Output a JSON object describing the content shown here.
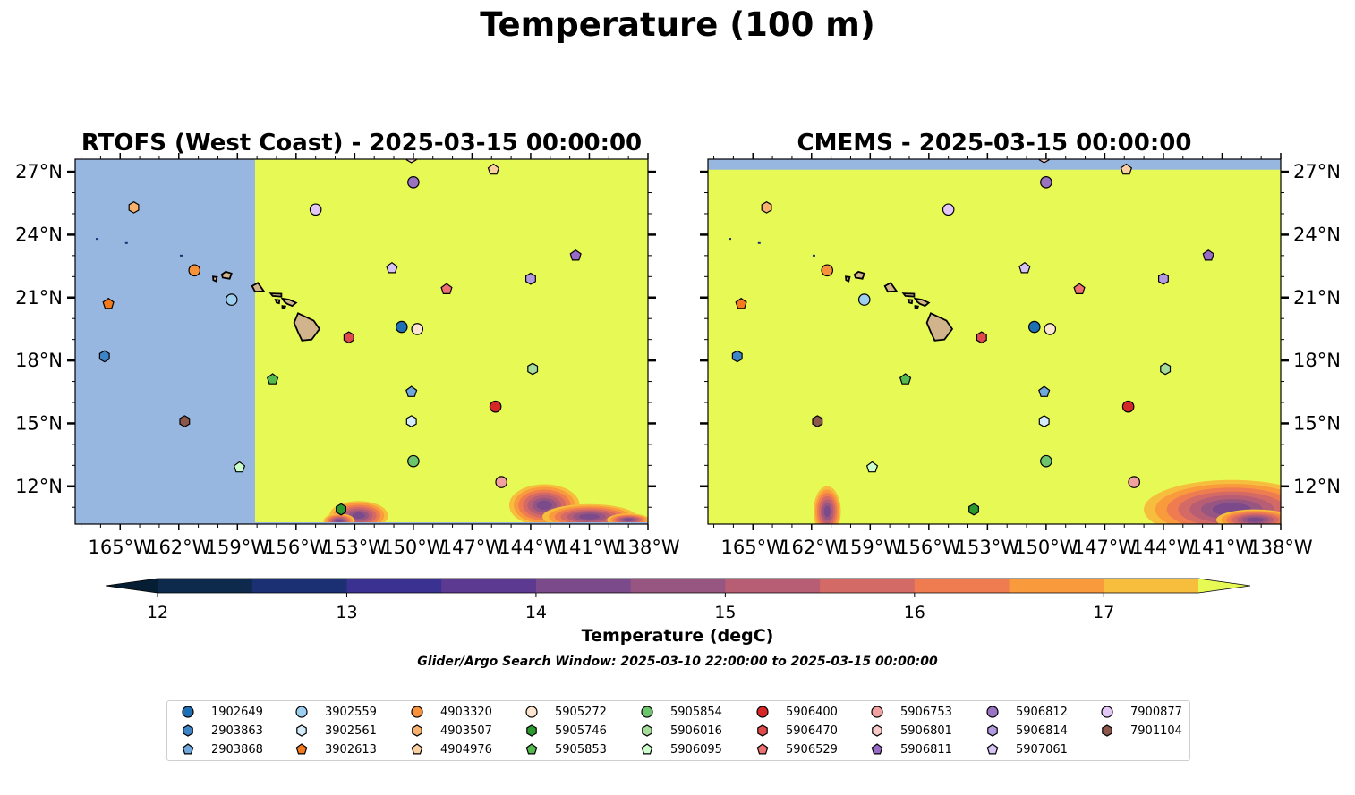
{
  "figure": {
    "title": "Temperature (100 m)",
    "colorbar_label": "Temperature (degC)",
    "search_window": "Glider/Argo Search Window: 2025-03-10 22:00:00 to 2025-03-15 00:00:00"
  },
  "chart_data": [
    {
      "type": "heatmap",
      "title": "RTOFS (West Coast) - 2025-03-15 00:00:00",
      "x_ticks": [
        "165°W",
        "162°W",
        "159°W",
        "156°W",
        "153°W",
        "150°W",
        "147°W",
        "144°W",
        "141°W",
        "138°W"
      ],
      "y_ticks": [
        "12°N",
        "15°N",
        "18°N",
        "21°N",
        "24°N",
        "27°N"
      ],
      "xlim": [
        -167.3,
        -138
      ],
      "ylim": [
        10.2,
        27.6
      ],
      "tick_side": "left",
      "no_data_lon_max": -158.1,
      "field_value": "> 17.5"
    },
    {
      "type": "heatmap",
      "title": "CMEMS - 2025-03-15 00:00:00",
      "x_ticks": [
        "165°W",
        "162°W",
        "159°W",
        "156°W",
        "153°W",
        "150°W",
        "147°W",
        "144°W",
        "141°W",
        "138°W"
      ],
      "y_ticks": [
        "12°N",
        "15°N",
        "18°N",
        "21°N",
        "24°N",
        "27°N"
      ],
      "xlim": [
        -167.3,
        -138
      ],
      "ylim": [
        10.2,
        27.6
      ],
      "tick_side": "right",
      "no_data_lat_min": 27.1,
      "field_value": "> 17.5"
    }
  ],
  "colorbar": {
    "min": 11.75,
    "max": 17.5,
    "ticks": [
      "12",
      "13",
      "14",
      "15",
      "16",
      "17"
    ],
    "tick_values": [
      12,
      13,
      14,
      15,
      16,
      17
    ],
    "bounds": [
      11.75,
      12,
      12.5,
      13,
      13.5,
      14,
      14.5,
      15,
      15.5,
      16,
      16.5,
      17,
      17.5
    ],
    "colors": [
      "#051e33",
      "#0d2a4d",
      "#1b2f73",
      "#3a3190",
      "#5c3a92",
      "#7a4a8a",
      "#975681",
      "#b75e75",
      "#d46a66",
      "#ee7c50",
      "#f99a3c",
      "#f7bd3d",
      "#f0d54a"
    ],
    "over_color": "#e6f955",
    "under_color": "#051e33",
    "no_data_color": "#97b6e0",
    "land_color": "#d2b48c"
  },
  "floats": [
    {
      "id": "1902649",
      "lon": -150.6,
      "lat": 19.6,
      "marker": "circle",
      "color": "#1f6fb4"
    },
    {
      "id": "2903863",
      "lon": -165.8,
      "lat": 18.2,
      "marker": "hexagon",
      "color": "#3d85c6"
    },
    {
      "id": "2903868",
      "lon": -150.1,
      "lat": 16.5,
      "marker": "pentagon",
      "color": "#6fa8dc"
    },
    {
      "id": "3902559",
      "lon": -159.3,
      "lat": 20.9,
      "marker": "circle",
      "color": "#9fcfee"
    },
    {
      "id": "3902561",
      "lon": -150.1,
      "lat": 15.1,
      "marker": "hexagon",
      "color": "#d4ecfa"
    },
    {
      "id": "3902613",
      "lon": -165.6,
      "lat": 20.7,
      "marker": "pentagon",
      "color": "#f37b1d"
    },
    {
      "id": "4903320",
      "lon": -161.2,
      "lat": 22.3,
      "marker": "circle",
      "color": "#f7923a"
    },
    {
      "id": "4903507",
      "lon": -164.3,
      "lat": 25.3,
      "marker": "hexagon",
      "color": "#f9b26e"
    },
    {
      "id": "4904976",
      "lon": -145.9,
      "lat": 27.1,
      "marker": "pentagon",
      "color": "#fcd0a1"
    },
    {
      "id": "5905272",
      "lon": -149.8,
      "lat": 19.5,
      "marker": "circle",
      "color": "#fde6cf"
    },
    {
      "id": "5905746",
      "lon": -153.7,
      "lat": 10.9,
      "marker": "hexagon",
      "color": "#2c9a2c"
    },
    {
      "id": "5905853",
      "lon": -157.2,
      "lat": 17.1,
      "marker": "pentagon",
      "color": "#55bb4e"
    },
    {
      "id": "5905854",
      "lon": -150.0,
      "lat": 13.2,
      "marker": "circle",
      "color": "#6cc46c"
    },
    {
      "id": "5906016",
      "lon": -143.9,
      "lat": 17.6,
      "marker": "hexagon",
      "color": "#a6dc9a"
    },
    {
      "id": "5906095",
      "lon": -158.9,
      "lat": 12.9,
      "marker": "pentagon",
      "color": "#ccffcc"
    },
    {
      "id": "5906400",
      "lon": -145.8,
      "lat": 15.8,
      "marker": "circle",
      "color": "#d62728"
    },
    {
      "id": "5906470",
      "lon": -153.3,
      "lat": 19.1,
      "marker": "hexagon",
      "color": "#e04a4a"
    },
    {
      "id": "5906529",
      "lon": -148.3,
      "lat": 21.4,
      "marker": "pentagon",
      "color": "#ef7070"
    },
    {
      "id": "5906753",
      "lon": -145.5,
      "lat": 12.2,
      "marker": "circle",
      "color": "#f2a0a0"
    },
    {
      "id": "5906801",
      "lon": -150.1,
      "lat": 27.7,
      "marker": "hexagon",
      "color": "#f9c9c9"
    },
    {
      "id": "5906811",
      "lon": -141.7,
      "lat": 23.0,
      "marker": "pentagon",
      "color": "#9a6bc6"
    },
    {
      "id": "5906812",
      "lon": -150.0,
      "lat": 26.5,
      "marker": "circle",
      "color": "#9a72c2"
    },
    {
      "id": "5906814",
      "lon": -144.0,
      "lat": 21.9,
      "marker": "hexagon",
      "color": "#b39ae0"
    },
    {
      "id": "5907061",
      "lon": -151.1,
      "lat": 22.4,
      "marker": "pentagon",
      "color": "#d7c4f5"
    },
    {
      "id": "7900877",
      "lon": -155.0,
      "lat": 25.2,
      "marker": "circle",
      "color": "#e3c8f7"
    },
    {
      "id": "7901104",
      "lon": -161.7,
      "lat": 15.1,
      "marker": "hexagon",
      "color": "#8c564b"
    }
  ],
  "islands": [
    {
      "name": "Hawaii",
      "pts": [
        [
          -155.9,
          20.25
        ],
        [
          -155.1,
          19.9
        ],
        [
          -154.8,
          19.5
        ],
        [
          -155.2,
          19.0
        ],
        [
          -155.7,
          18.95
        ],
        [
          -155.9,
          19.35
        ],
        [
          -156.1,
          19.8
        ]
      ]
    },
    {
      "name": "Maui",
      "pts": [
        [
          -156.7,
          20.95
        ],
        [
          -156.35,
          20.9
        ],
        [
          -156.0,
          20.75
        ],
        [
          -156.2,
          20.6
        ],
        [
          -156.45,
          20.7
        ],
        [
          -156.6,
          20.8
        ]
      ]
    },
    {
      "name": "Molokai",
      "pts": [
        [
          -157.3,
          21.2
        ],
        [
          -156.75,
          21.18
        ],
        [
          -156.75,
          21.05
        ],
        [
          -157.2,
          21.08
        ]
      ]
    },
    {
      "name": "Lanai",
      "pts": [
        [
          -157.05,
          20.9
        ],
        [
          -156.85,
          20.88
        ],
        [
          -156.87,
          20.73
        ],
        [
          -157.0,
          20.76
        ]
      ]
    },
    {
      "name": "Oahu",
      "pts": [
        [
          -158.25,
          21.55
        ],
        [
          -157.95,
          21.7
        ],
        [
          -157.65,
          21.3
        ],
        [
          -158.1,
          21.28
        ]
      ]
    },
    {
      "name": "Kauai",
      "pts": [
        [
          -159.8,
          22.1
        ],
        [
          -159.6,
          22.23
        ],
        [
          -159.3,
          22.15
        ],
        [
          -159.4,
          21.9
        ],
        [
          -159.75,
          21.95
        ]
      ]
    },
    {
      "name": "Niihau",
      "pts": [
        [
          -160.25,
          22.0
        ],
        [
          -160.05,
          21.98
        ],
        [
          -160.1,
          21.78
        ],
        [
          -160.23,
          21.83
        ]
      ]
    },
    {
      "name": "Kahoolawe",
      "pts": [
        [
          -156.7,
          20.6
        ],
        [
          -156.55,
          20.58
        ],
        [
          -156.58,
          20.5
        ],
        [
          -156.7,
          20.52
        ]
      ]
    }
  ],
  "warm_patches_rtofs": [
    {
      "lon": -152.8,
      "lat": 10.6,
      "rx": 1.5,
      "ry": 0.7
    },
    {
      "lon": -153.8,
      "lat": 10.35,
      "rx": 0.8,
      "ry": 0.35
    },
    {
      "lon": -143.3,
      "lat": 11.1,
      "rx": 1.8,
      "ry": 1.0
    },
    {
      "lon": -141.0,
      "lat": 10.55,
      "rx": 2.4,
      "ry": 0.6
    },
    {
      "lon": -139.0,
      "lat": 10.4,
      "rx": 1.1,
      "ry": 0.3
    }
  ],
  "warm_patches_cmems": [
    {
      "lon": -161.2,
      "lat": 10.8,
      "rx": 0.7,
      "ry": 1.2
    },
    {
      "lon": -140.5,
      "lat": 10.9,
      "rx": 4.5,
      "ry": 1.4
    },
    {
      "lon": -139.3,
      "lat": 10.4,
      "rx": 2.0,
      "ry": 0.5
    }
  ]
}
